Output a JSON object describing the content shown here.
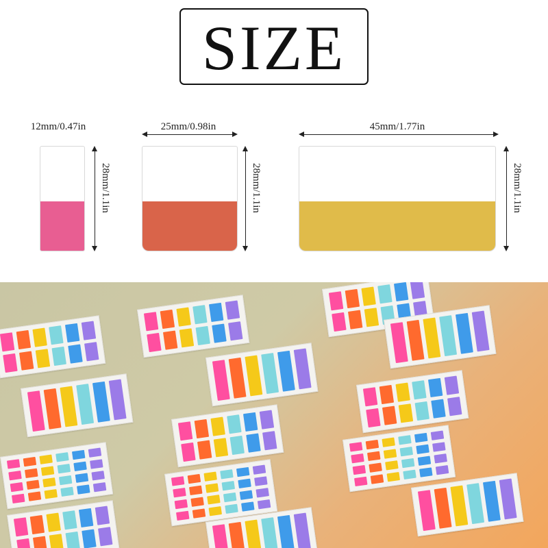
{
  "title": "SIZE",
  "sizes": [
    {
      "width_label": "12mm/0.47in",
      "height_label": "28mm/1.1in",
      "color": "#E85E92"
    },
    {
      "width_label": "25mm/0.98in",
      "height_label": "28mm/1.1in",
      "color": "#D9644A"
    },
    {
      "width_label": "45mm/1.77in",
      "height_label": "28mm/1.1in",
      "color": "#E0BB4A"
    }
  ],
  "photo": {
    "palette": [
      "#FF4FA0",
      "#FF6A2E",
      "#F5C919",
      "#7FD6DE",
      "#3F9BEA",
      "#9B7BE8"
    ]
  }
}
